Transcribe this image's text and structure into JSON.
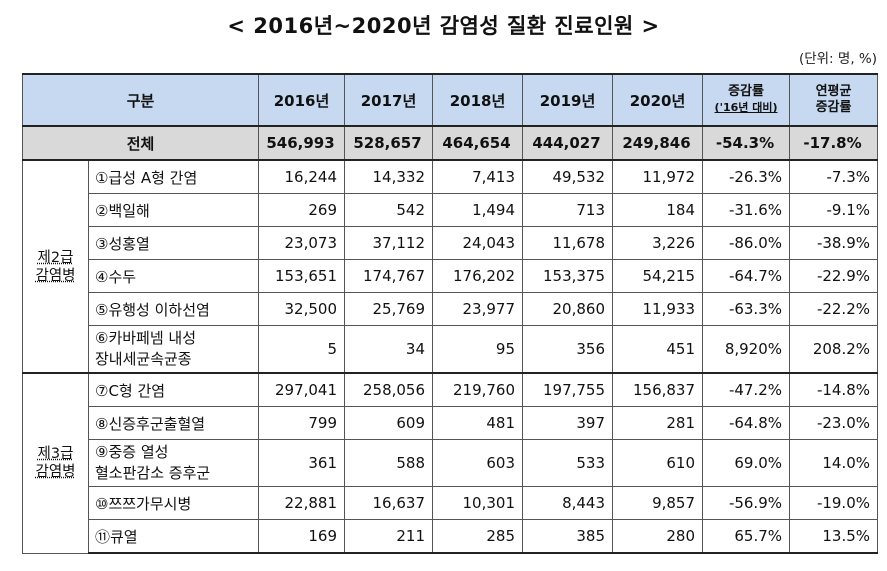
{
  "title": "< 2016년~2020년 감염성 질환 진료인원 >",
  "unit": "(단위: 명, %)",
  "headers": {
    "category": "구분",
    "y2016": "2016년",
    "y2017": "2017년",
    "y2018": "2018년",
    "y2019": "2019년",
    "y2020": "2020년",
    "rate_main": "증감률",
    "rate_sub": "('16년 대비)",
    "annual_line1": "연평균",
    "annual_line2": "증감률"
  },
  "total": {
    "label": "전체",
    "values": [
      "546,993",
      "528,657",
      "464,654",
      "444,027",
      "249,846",
      "-54.3%",
      "-17.8%"
    ]
  },
  "groups": [
    {
      "label_line1": "제2급",
      "label_line2": "감염병",
      "rows": [
        {
          "name": "①급성 A형 간염",
          "values": [
            "16,244",
            "14,332",
            "7,413",
            "49,532",
            "11,972",
            "-26.3%",
            "-7.3%"
          ]
        },
        {
          "name": "②백일해",
          "values": [
            "269",
            "542",
            "1,494",
            "713",
            "184",
            "-31.6%",
            "-9.1%"
          ]
        },
        {
          "name": "③성홍열",
          "values": [
            "23,073",
            "37,112",
            "24,043",
            "11,678",
            "3,226",
            "-86.0%",
            "-38.9%"
          ]
        },
        {
          "name": "④수두",
          "values": [
            "153,651",
            "174,767",
            "176,202",
            "153,375",
            "54,215",
            "-64.7%",
            "-22.9%"
          ]
        },
        {
          "name": "⑤유행성 이하선염",
          "values": [
            "32,500",
            "25,769",
            "23,977",
            "20,860",
            "11,933",
            "-63.3%",
            "-22.2%"
          ]
        },
        {
          "name_line1": "⑥카바페넴 내성",
          "name_line2": "장내세균속균종",
          "values": [
            "5",
            "34",
            "95",
            "356",
            "451",
            "8,920%",
            "208.2%"
          ]
        }
      ]
    },
    {
      "label_line1": "제3급",
      "label_line2": "감염병",
      "rows": [
        {
          "name": "⑦C형 간염",
          "values": [
            "297,041",
            "258,056",
            "219,760",
            "197,755",
            "156,837",
            "-47.2%",
            "-14.8%"
          ]
        },
        {
          "name": "⑧신증후군출혈열",
          "values": [
            "799",
            "609",
            "481",
            "397",
            "281",
            "-64.8%",
            "-23.0%"
          ]
        },
        {
          "name_line1": "⑨중증 열성",
          "name_line2": "혈소판감소 증후군",
          "values": [
            "361",
            "588",
            "603",
            "533",
            "610",
            "69.0%",
            "14.0%"
          ]
        },
        {
          "name": "⑩쯔쯔가무시병",
          "values": [
            "22,881",
            "16,637",
            "10,301",
            "8,443",
            "9,857",
            "-56.9%",
            "-19.0%"
          ]
        },
        {
          "name": "⑪큐열",
          "values": [
            "169",
            "211",
            "285",
            "385",
            "280",
            "65.7%",
            "13.5%"
          ]
        }
      ]
    }
  ]
}
